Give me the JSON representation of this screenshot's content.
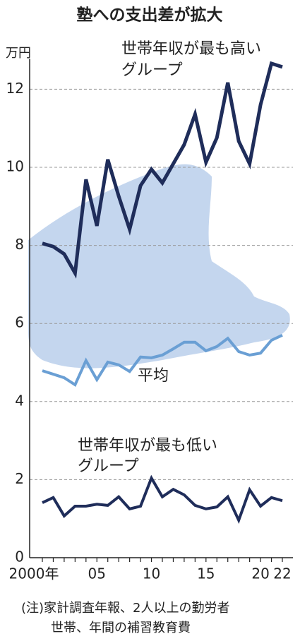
{
  "chart_data": {
    "type": "line",
    "title": "塾への支出差が拡大",
    "y_unit": "万円",
    "categories": [
      "2000年",
      null,
      null,
      null,
      null,
      "05",
      null,
      null,
      null,
      null,
      "10",
      null,
      null,
      null,
      null,
      "15",
      null,
      null,
      null,
      null,
      "20",
      null,
      "22"
    ],
    "series": [
      {
        "name": [
          "世帯年収が最も高い",
          "グループ"
        ],
        "color": "#1f2d5a",
        "values": [
          8.05,
          7.97,
          7.78,
          7.29,
          9.69,
          8.5,
          10.2,
          9.26,
          8.41,
          9.53,
          9.95,
          9.6,
          10.09,
          10.58,
          11.36,
          10.13,
          10.76,
          12.17,
          10.67,
          10.09,
          11.6,
          12.66,
          12.57
        ]
      },
      {
        "name": "平均",
        "color": "#6a9fd4",
        "values": [
          4.79,
          4.7,
          4.61,
          4.43,
          5.05,
          4.56,
          5.01,
          4.94,
          4.77,
          5.14,
          5.12,
          5.19,
          5.35,
          5.52,
          5.52,
          5.3,
          5.41,
          5.62,
          5.28,
          5.19,
          5.24,
          5.57,
          5.7
        ]
      },
      {
        "name": [
          "世帯年収が最も低い",
          "グループ"
        ],
        "color": "#1f2d5a",
        "values": [
          1.41,
          1.54,
          1.07,
          1.32,
          1.32,
          1.37,
          1.34,
          1.56,
          1.25,
          1.32,
          2.04,
          1.56,
          1.75,
          1.61,
          1.34,
          1.25,
          1.3,
          1.56,
          0.96,
          1.74,
          1.32,
          1.54,
          1.46
        ]
      }
    ],
    "ylim": [
      0,
      12.6
    ],
    "yticks": [
      0,
      2,
      4,
      6,
      8,
      10,
      12
    ],
    "grid": true,
    "note": [
      "(注)家計調査年報、2人以上の勤労者",
      "世帯、年間の補習教育費"
    ]
  }
}
